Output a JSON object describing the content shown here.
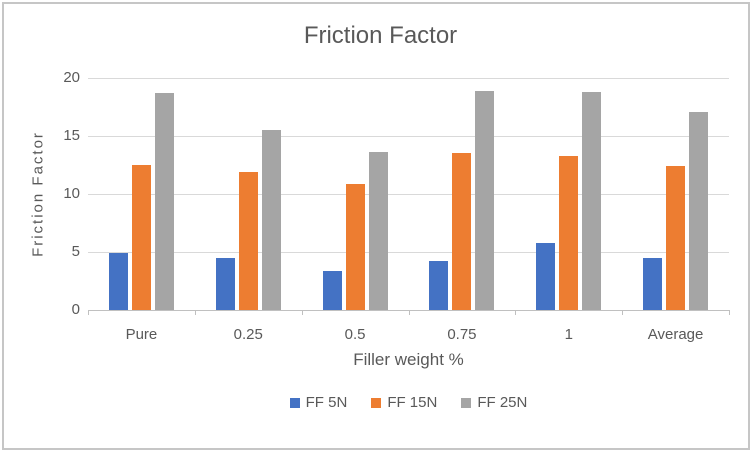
{
  "chart_data": {
    "type": "bar",
    "title": "Friction Factor",
    "xlabel": "Filler weight %",
    "ylabel": "Friction Factor",
    "categories": [
      "Pure",
      "0.25",
      "0.5",
      "0.75",
      "1",
      "Average"
    ],
    "series": [
      {
        "name": "FF 5N",
        "color": "#4472C4",
        "values": [
          4.9,
          4.5,
          3.4,
          4.2,
          5.8,
          4.5
        ]
      },
      {
        "name": "FF 15N",
        "color": "#ED7D31",
        "values": [
          12.5,
          11.9,
          10.9,
          13.5,
          13.3,
          12.4
        ]
      },
      {
        "name": "FF 25N",
        "color": "#A5A5A5",
        "values": [
          18.7,
          15.5,
          13.6,
          18.9,
          18.8,
          17.1
        ]
      }
    ],
    "ylim": [
      0,
      20
    ],
    "yticks": [
      0,
      5,
      10,
      15,
      20
    ],
    "grid": "horizontal",
    "legend_position": "bottom",
    "text_color": "#595959",
    "gridline_color": "#D9D9D9",
    "axis_color": "#BFBFBF",
    "frame_border_color": "#C6C6C6"
  }
}
